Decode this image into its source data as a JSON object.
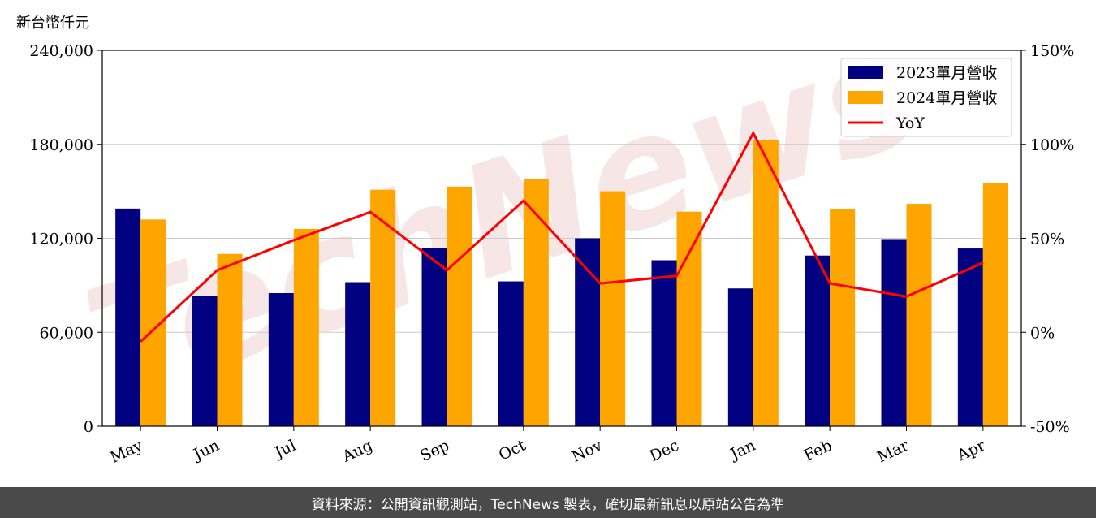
{
  "chart_data": {
    "type": "bar",
    "unit_label": "新台幣仟元",
    "categories": [
      "May",
      "Jun",
      "Jul",
      "Aug",
      "Sep",
      "Oct",
      "Nov",
      "Dec",
      "Jan",
      "Feb",
      "Mar",
      "Apr"
    ],
    "series": [
      {
        "name": "2023單月營收",
        "type": "bar",
        "color": "#000080",
        "values": [
          139000,
          83000,
          85000,
          92000,
          114000,
          92500,
          120000,
          106000,
          88000,
          109000,
          119500,
          113500
        ]
      },
      {
        "name": "2024單月營收",
        "type": "bar",
        "color": "#ffa500",
        "values": [
          132000,
          110000,
          126000,
          151000,
          153000,
          158000,
          150000,
          137000,
          183000,
          138500,
          142000,
          155000
        ]
      },
      {
        "name": "YoY",
        "type": "line",
        "axis": "right",
        "color": "#ff0000",
        "values": [
          -5,
          33,
          49,
          64,
          33,
          70,
          26,
          30,
          106,
          26,
          19,
          37
        ]
      }
    ],
    "y_left": {
      "ylim": [
        0,
        240000
      ],
      "ticks": [
        0,
        60000,
        120000,
        180000,
        240000
      ],
      "tick_labels": [
        "0",
        "60,000",
        "120,000",
        "180,000",
        "240,000"
      ]
    },
    "y_right": {
      "ylim": [
        -50,
        150
      ],
      "ticks": [
        -50,
        0,
        50,
        100,
        150
      ],
      "tick_labels": [
        "-50%",
        "0%",
        "50%",
        "100%",
        "150%"
      ]
    },
    "grid": "horizontal",
    "legend_position": "top-right",
    "watermark": "TechNews"
  },
  "footer": {
    "source": "資料來源：公開資訊觀測站，TechNews 製表，確切最新訊息以原站公告為準"
  }
}
